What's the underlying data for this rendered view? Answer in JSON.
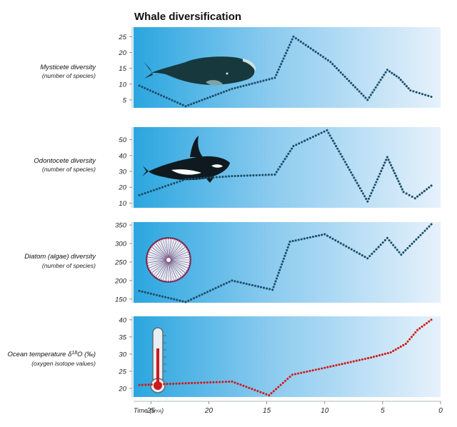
{
  "chart_data": {
    "type": "line",
    "title": "Whale diversification",
    "x_axis": {
      "label": "Time",
      "unit": "MYA",
      "reversed": true,
      "range": [
        26.5,
        0
      ],
      "ticks": [
        25,
        20,
        15,
        10,
        5,
        0
      ]
    },
    "panels": [
      {
        "id": "mysticete",
        "label": "Mysticete diversity",
        "sublabel": "(number of species)",
        "ylim": [
          2.5,
          28
        ],
        "yticks": [
          5,
          10,
          15,
          20,
          25
        ],
        "series_color": "#1d4e6b",
        "x": [
          26,
          22,
          18,
          14.3,
          12.7,
          9.5,
          6.3,
          4.6,
          3.6,
          2.6,
          0.8
        ],
        "values": [
          9.5,
          3,
          8.5,
          12,
          25,
          17,
          5,
          14.5,
          12,
          8,
          6
        ]
      },
      {
        "id": "odontocete",
        "label": "Odontocete diversity",
        "sublabel": "(number of species)",
        "ylim": [
          7,
          58
        ],
        "yticks": [
          10,
          20,
          30,
          40,
          50
        ],
        "series_color": "#1d4e6b",
        "x": [
          26,
          22,
          18,
          14.3,
          12.7,
          9.8,
          6.3,
          4.6,
          3.2,
          2.2,
          0.8
        ],
        "values": [
          15,
          25,
          27,
          28,
          46,
          56,
          11,
          39,
          17,
          13,
          21
        ]
      },
      {
        "id": "diatom",
        "label": "Diatom (algae) diversity",
        "sublabel": "(number of species)",
        "ylim": [
          140,
          358
        ],
        "yticks": [
          150,
          200,
          250,
          300,
          350
        ],
        "series_color": "#1d4e6b",
        "x": [
          26,
          22,
          18,
          14.5,
          13,
          10,
          6.3,
          4.6,
          3.4,
          0.8
        ],
        "values": [
          172,
          142,
          200,
          175,
          305,
          325,
          260,
          315,
          270,
          352
        ]
      },
      {
        "id": "temperature",
        "label": "Ocean temperature",
        "label_symbol": "δ",
        "label_sup": "18",
        "label_rest": "O (",
        "label_permil": "‰",
        "label_close": ")",
        "sublabel": "(oxygen isotope values)",
        "ylim": [
          17.5,
          41
        ],
        "yticks": [
          20,
          25,
          30,
          35,
          40
        ],
        "series_color": "#d01c1c",
        "x": [
          26,
          22,
          18,
          14.8,
          12.8,
          10,
          8,
          6,
          4.3,
          3.0,
          2.0,
          0.8
        ],
        "values": [
          21,
          21.5,
          22,
          18,
          24,
          26,
          27.5,
          29,
          30.5,
          33,
          37,
          40
        ]
      }
    ],
    "icons": [
      "whale-icon",
      "orca-icon",
      "diatom-icon",
      "thermometer-icon"
    ]
  }
}
